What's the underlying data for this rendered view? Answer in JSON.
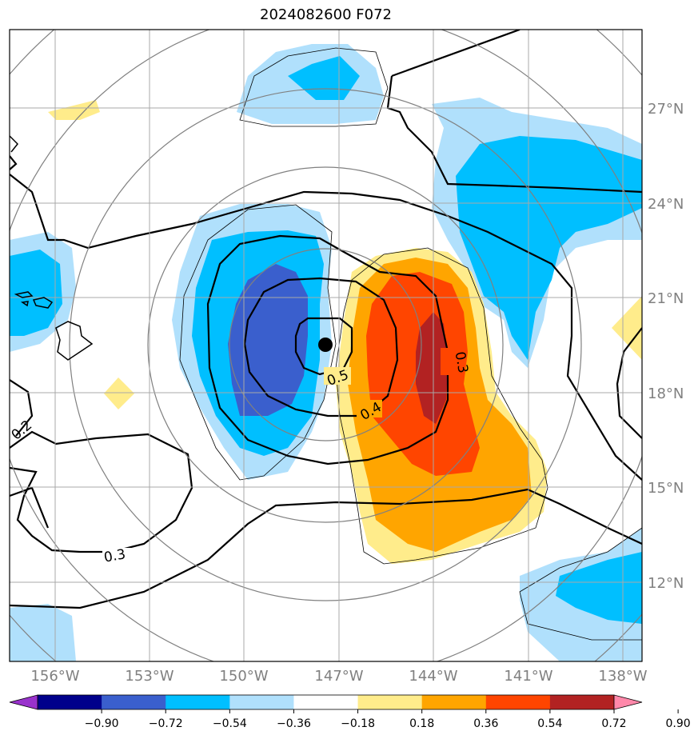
{
  "title": "2024082600 F072",
  "map": {
    "lon_labels": [
      "156°W",
      "153°W",
      "150°W",
      "147°W",
      "144°W",
      "141°W",
      "138°W"
    ],
    "lat_labels": [
      "27°N",
      "24°N",
      "21°N",
      "18°N",
      "15°N",
      "12°N"
    ],
    "contour_labels": [
      "0.5",
      "0.4",
      "0.3",
      "0.2",
      "0.3"
    ],
    "colors": {
      "neg_strong": "#3a5fcd",
      "neg_mid": "#00bfff",
      "neg_weak": "#b0e0fc",
      "pos_weak": "#ffec8b",
      "pos_mid": "#ffa500",
      "pos_strong": "#ff4500",
      "pos_max": "#b22222",
      "grid": "#a8a8a8",
      "ring": "#808080"
    },
    "storm_center": {
      "lon": "-147.0",
      "lat": "19.5"
    }
  },
  "colorbar": {
    "ticks": [
      "−0.90",
      "−0.72",
      "−0.54",
      "−0.36",
      "−0.18",
      "0.18",
      "0.36",
      "0.54",
      "0.72",
      "0.90"
    ],
    "colors": [
      "#9932cc",
      "#00008b",
      "#3a5fcd",
      "#00bfff",
      "#b0e0fc",
      "#ffffff",
      "#ffec8b",
      "#ffa500",
      "#ff4500",
      "#b22222",
      "#ff88aa"
    ]
  }
}
